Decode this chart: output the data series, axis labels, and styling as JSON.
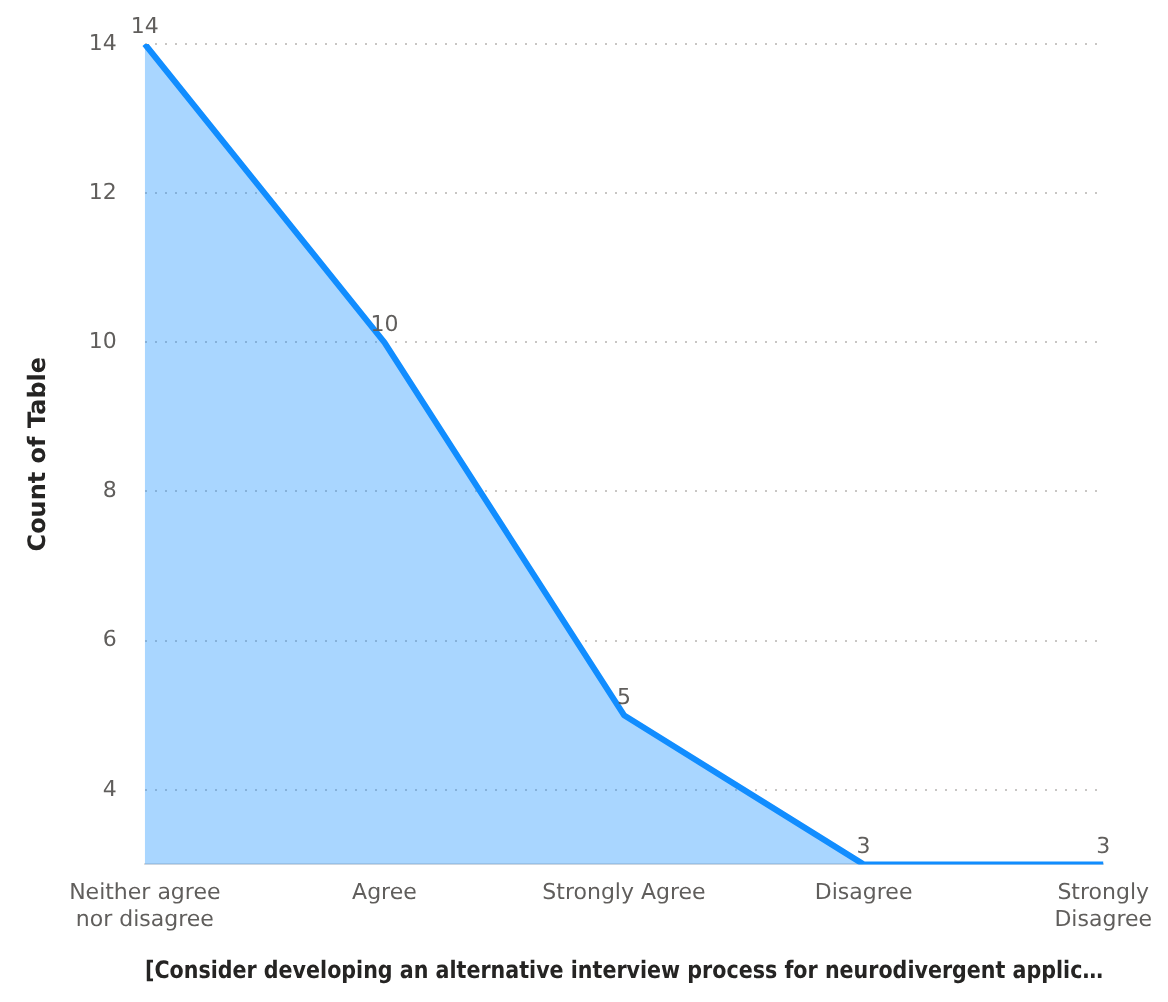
{
  "chart_data": {
    "type": "area",
    "xlabel": "[Consider developing an alternative interview process for neurodivergent applic…",
    "ylabel": "Count of Table",
    "categories": [
      "Neither agree nor disagree",
      "Agree",
      "Strongly Agree",
      "Disagree",
      "Strongly Disagree"
    ],
    "series": [
      {
        "color": "#118dff",
        "values": [
          14,
          10,
          5,
          3,
          3
        ]
      }
    ],
    "ylim": [
      3,
      14
    ],
    "yticks": [
      4,
      6,
      8,
      10,
      12,
      14
    ],
    "grid": "y",
    "data_labels": true,
    "legend": false,
    "marker": "none"
  }
}
